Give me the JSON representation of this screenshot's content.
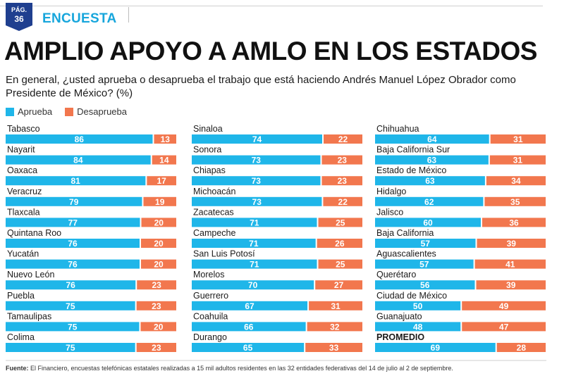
{
  "header": {
    "badge_line1": "PÁG.",
    "badge_line2": "36",
    "section": "ENCUESTA"
  },
  "colors": {
    "aprueba": "#1fb6e9",
    "desaprueba": "#f2774e"
  },
  "footnote": {
    "label": "Fuente:",
    "text": "El Financiero, encuestas telefónicas estatales realizadas a 15 mil adultos residentes en las 32 entidades federativas del 14 de julio al 2 de septiembre."
  },
  "chart_data": {
    "type": "bar",
    "orientation": "horizontal",
    "stacked": true,
    "title": "AMPLIO APOYO A AMLO EN LOS ESTADOS",
    "subtitle": "En general, ¿usted aprueba o desaprueba el trabajo que está haciendo Andrés Manuel López Obrador como Presidente de México? (%)",
    "legend": [
      "Aprueba",
      "Desaprueba"
    ],
    "legend_position": "top-left",
    "grid": false,
    "columns": [
      [
        {
          "name": "Tabasco",
          "aprueba": 86,
          "desaprueba": 13
        },
        {
          "name": "Nayarit",
          "aprueba": 84,
          "desaprueba": 14
        },
        {
          "name": "Oaxaca",
          "aprueba": 81,
          "desaprueba": 17
        },
        {
          "name": "Veracruz",
          "aprueba": 79,
          "desaprueba": 19
        },
        {
          "name": "Tlaxcala",
          "aprueba": 77,
          "desaprueba": 20
        },
        {
          "name": "Quintana Roo",
          "aprueba": 76,
          "desaprueba": 20
        },
        {
          "name": "Yucatán",
          "aprueba": 76,
          "desaprueba": 20
        },
        {
          "name": "Nuevo León",
          "aprueba": 76,
          "desaprueba": 23
        },
        {
          "name": "Puebla",
          "aprueba": 75,
          "desaprueba": 23
        },
        {
          "name": "Tamaulipas",
          "aprueba": 75,
          "desaprueba": 20
        },
        {
          "name": "Colima",
          "aprueba": 75,
          "desaprueba": 23
        }
      ],
      [
        {
          "name": "Sinaloa",
          "aprueba": 74,
          "desaprueba": 22
        },
        {
          "name": "Sonora",
          "aprueba": 73,
          "desaprueba": 23
        },
        {
          "name": "Chiapas",
          "aprueba": 73,
          "desaprueba": 23
        },
        {
          "name": "Michoacán",
          "aprueba": 73,
          "desaprueba": 22
        },
        {
          "name": "Zacatecas",
          "aprueba": 71,
          "desaprueba": 25
        },
        {
          "name": "Campeche",
          "aprueba": 71,
          "desaprueba": 26
        },
        {
          "name": "San Luis Potosí",
          "aprueba": 71,
          "desaprueba": 25
        },
        {
          "name": "Morelos",
          "aprueba": 70,
          "desaprueba": 27
        },
        {
          "name": "Guerrero",
          "aprueba": 67,
          "desaprueba": 31
        },
        {
          "name": "Coahuila",
          "aprueba": 66,
          "desaprueba": 32
        },
        {
          "name": "Durango",
          "aprueba": 65,
          "desaprueba": 33
        }
      ],
      [
        {
          "name": "Chihuahua",
          "aprueba": 64,
          "desaprueba": 31
        },
        {
          "name": "Baja California Sur",
          "aprueba": 63,
          "desaprueba": 31
        },
        {
          "name": "Estado de México",
          "aprueba": 63,
          "desaprueba": 34
        },
        {
          "name": "Hidalgo",
          "aprueba": 62,
          "desaprueba": 35
        },
        {
          "name": "Jalisco",
          "aprueba": 60,
          "desaprueba": 36
        },
        {
          "name": "Baja California",
          "aprueba": 57,
          "desaprueba": 39
        },
        {
          "name": "Aguascalientes",
          "aprueba": 57,
          "desaprueba": 41
        },
        {
          "name": "Querétaro",
          "aprueba": 56,
          "desaprueba": 39
        },
        {
          "name": "Ciudad de México",
          "aprueba": 50,
          "desaprueba": 49
        },
        {
          "name": "Guanajuato",
          "aprueba": 48,
          "desaprueba": 47
        },
        {
          "name": "PROMEDIO",
          "aprueba": 69,
          "desaprueba": 28,
          "highlight": true
        }
      ]
    ]
  }
}
